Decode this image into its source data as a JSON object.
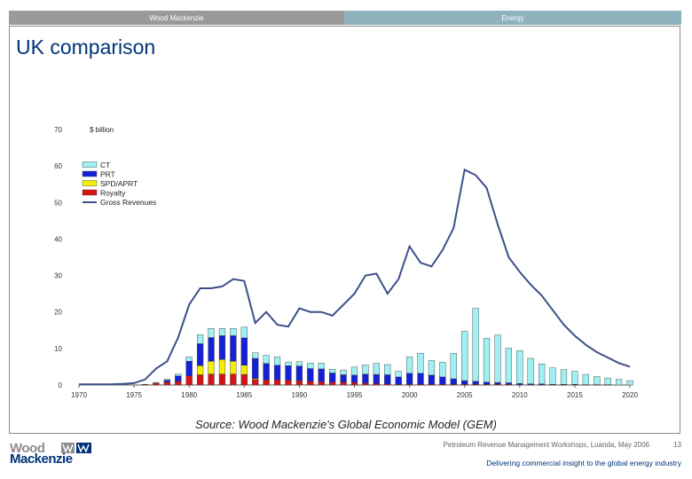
{
  "header": {
    "left_label": "Wood Mackenzie",
    "right_label": "Energy"
  },
  "page_title": "UK comparison",
  "source_note": "Source: Wood Mackenzie's Global Economic Model (GEM)",
  "footer": {
    "info": "Petroleum Revenue Management Workshops, Luanda, May 2006",
    "page_number": "13",
    "tagline": "Delivering commercial insight to the global energy industry",
    "logo_line1": "Wood",
    "logo_line2": "Mackenzie"
  },
  "colors": {
    "ct": "#9ff0f2",
    "prt": "#1521d6",
    "spd_aprt": "#f2ef00",
    "royalty": "#d61414",
    "gross": "#3d4f8a",
    "title": "#003478"
  },
  "chart_data": {
    "type": "bar",
    "stacked": true,
    "unit_label": "$ billion",
    "ylim": [
      0,
      70
    ],
    "yticks": [
      0,
      10,
      20,
      30,
      40,
      50,
      60,
      70
    ],
    "xticks": [
      1970,
      1975,
      1980,
      1985,
      1990,
      1995,
      2000,
      2005,
      2010,
      2015,
      2020
    ],
    "legend_position": "top-left",
    "x": [
      1970,
      1971,
      1972,
      1973,
      1974,
      1975,
      1976,
      1977,
      1978,
      1979,
      1980,
      1981,
      1982,
      1983,
      1984,
      1985,
      1986,
      1987,
      1988,
      1989,
      1990,
      1991,
      1992,
      1993,
      1994,
      1995,
      1996,
      1997,
      1998,
      1999,
      2000,
      2001,
      2002,
      2003,
      2004,
      2005,
      2006,
      2007,
      2008,
      2009,
      2010,
      2011,
      2012,
      2013,
      2014,
      2015,
      2016,
      2017,
      2018,
      2019,
      2020
    ],
    "series": [
      {
        "name": "CT",
        "values": [
          0,
          0,
          0,
          0,
          0,
          0,
          0,
          0.2,
          0.3,
          0.5,
          1.2,
          2.5,
          2.5,
          2.0,
          2.0,
          3.0,
          1.5,
          2.2,
          2.3,
          1.0,
          1.2,
          1.5,
          1.6,
          1.0,
          1.3,
          2.2,
          2.5,
          3.0,
          2.8,
          1.5,
          4.5,
          5.5,
          4.0,
          4.0,
          7.0,
          13.5,
          20.0,
          12.0,
          13.0,
          9.5,
          9.0,
          7.0,
          5.5,
          4.5,
          4.0,
          3.5,
          2.8,
          2.2,
          1.8,
          1.5,
          1.2
        ]
      },
      {
        "name": "PRT",
        "values": [
          0,
          0,
          0,
          0,
          0,
          0,
          0,
          0,
          0.5,
          1.5,
          4.0,
          6.0,
          6.5,
          6.5,
          7.0,
          7.5,
          5.5,
          4.5,
          4.0,
          4.0,
          4.0,
          3.5,
          3.5,
          2.5,
          2.0,
          2.0,
          2.5,
          2.5,
          2.5,
          2.0,
          3.0,
          3.0,
          2.5,
          2.0,
          1.5,
          1.0,
          0.8,
          0.6,
          0.5,
          0.4,
          0.3,
          0.2,
          0.2,
          0.1,
          0.1,
          0.1,
          0,
          0,
          0,
          0,
          0
        ]
      },
      {
        "name": "SPD/APRT",
        "values": [
          0,
          0,
          0,
          0,
          0,
          0,
          0,
          0,
          0,
          0,
          0,
          2.5,
          3.5,
          4.0,
          3.5,
          2.5,
          0.3,
          0,
          0,
          0,
          0,
          0,
          0,
          0,
          0,
          0,
          0,
          0,
          0,
          0,
          0,
          0,
          0,
          0,
          0,
          0,
          0,
          0,
          0,
          0,
          0,
          0,
          0,
          0,
          0,
          0,
          0,
          0,
          0,
          0,
          0
        ]
      },
      {
        "name": "Royalty",
        "values": [
          0,
          0,
          0,
          0,
          0,
          0,
          0.2,
          0.5,
          0.8,
          1.0,
          2.5,
          2.8,
          3.0,
          3.0,
          3.0,
          2.9,
          1.5,
          1.4,
          1.4,
          1.3,
          1.2,
          1.0,
          0.9,
          0.8,
          0.8,
          0.7,
          0.5,
          0.4,
          0.3,
          0.2,
          0.2,
          0.2,
          0.2,
          0.2,
          0.2,
          0.2,
          0.2,
          0.2,
          0.2,
          0.2,
          0.1,
          0.1,
          0.1,
          0.1,
          0.1,
          0.1,
          0.1,
          0.1,
          0.1,
          0,
          0
        ]
      }
    ],
    "line": {
      "name": "Gross Revenues",
      "values": [
        0.2,
        0.2,
        0.2,
        0.2,
        0.3,
        0.5,
        1.5,
        4.5,
        6.5,
        13.0,
        22.0,
        26.5,
        26.5,
        27.0,
        29.0,
        28.5,
        17.0,
        20.0,
        16.5,
        16.0,
        21.0,
        20.0,
        20.0,
        19.0,
        22.0,
        25.0,
        30.0,
        30.5,
        25.0,
        29.0,
        38.0,
        33.5,
        32.5,
        37.0,
        43.0,
        59.0,
        57.5,
        54.0,
        44.0,
        35.0,
        31.0,
        27.5,
        24.5,
        20.5,
        16.5,
        13.5,
        11.0,
        9.0,
        7.5,
        6.0,
        5.0
      ]
    }
  }
}
